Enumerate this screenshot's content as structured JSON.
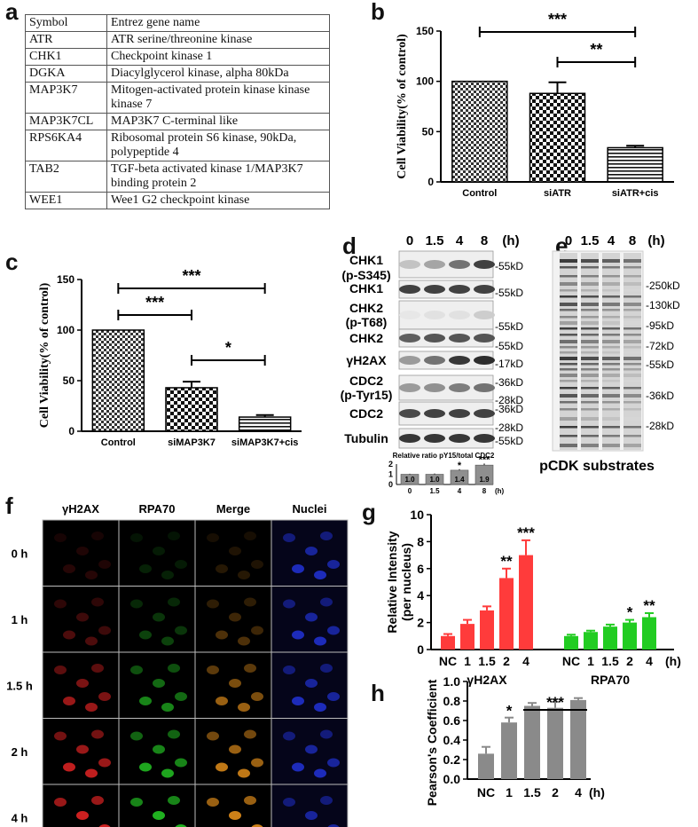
{
  "panel_labels": {
    "a": "a",
    "b": "b",
    "c": "c",
    "d": "d",
    "e": "e",
    "f": "f",
    "g": "g",
    "h": "h"
  },
  "gene_table": {
    "headers": [
      "Symbol",
      "Entrez gene name"
    ],
    "rows": [
      {
        "symbol": "ATR",
        "name": "ATR serine/threonine kinase"
      },
      {
        "symbol": "CHK1",
        "name": "Checkpoint kinase 1"
      },
      {
        "symbol": "DGKA",
        "name": "Diacylglycerol kinase, alpha 80kDa"
      },
      {
        "symbol": "MAP3K7",
        "name": "Mitogen-activated protein kinase kinase kinase 7"
      },
      {
        "symbol": "MAP3K7CL",
        "name": "MAP3K7 C-terminal like"
      },
      {
        "symbol": "RPS6KA4",
        "name": "Ribosomal protein S6 kinase, 90kDa, polypeptide 4"
      },
      {
        "symbol": "TAB2",
        "name": "TGF-beta activated kinase 1/MAP3K7 binding protein 2"
      },
      {
        "symbol": "WEE1",
        "name": "Wee1 G2 checkpoint kinase"
      }
    ]
  },
  "chart_data": [
    {
      "id": "b",
      "type": "bar",
      "categories": [
        "Control",
        "siATR",
        "siATR+cis"
      ],
      "values": [
        100,
        88,
        34
      ],
      "errors": [
        0,
        11,
        2
      ],
      "ylabel": "Cell Viability(% of control)",
      "ylim": [
        0,
        150
      ],
      "yticks": [
        "0",
        "50",
        "100",
        "150"
      ],
      "significance": [
        {
          "from": 0,
          "to": 2,
          "label": "***"
        },
        {
          "from": 1,
          "to": 2,
          "label": "**"
        }
      ],
      "grid": false
    },
    {
      "id": "c",
      "type": "bar",
      "categories": [
        "Control",
        "siMAP3K7",
        "siMAP3K7+cis"
      ],
      "values": [
        100,
        43,
        14
      ],
      "errors": [
        0,
        6,
        2
      ],
      "ylabel": "Cell Viability(% of control)",
      "ylim": [
        0,
        150
      ],
      "yticks": [
        "0",
        "50",
        "100",
        "150"
      ],
      "significance": [
        {
          "from": 0,
          "to": 2,
          "label": "***"
        },
        {
          "from": 0,
          "to": 1,
          "label": "***"
        },
        {
          "from": 1,
          "to": 2,
          "label": "*"
        }
      ],
      "grid": false
    },
    {
      "id": "d-inset",
      "type": "bar",
      "title": "Relative ratio pY15/total CDC2",
      "categories": [
        "0",
        "1.5",
        "4",
        "8"
      ],
      "values": [
        1.0,
        1.0,
        1.4,
        1.9
      ],
      "value_labels": [
        "1.0",
        "1.0",
        "1.4",
        "1.9"
      ],
      "errors": [
        0.05,
        0.08,
        0.1,
        0.15
      ],
      "stars": [
        "",
        "",
        "*",
        "***"
      ],
      "xunit": "(h)",
      "ylim": [
        0,
        2
      ],
      "yticks": [
        "0",
        "1",
        "2"
      ]
    },
    {
      "id": "g",
      "type": "bar",
      "groups": [
        {
          "name": "γH2AX",
          "color": "#ff3b3b",
          "categories": [
            "NC",
            "1",
            "1.5",
            "2",
            "4"
          ],
          "values": [
            1.0,
            1.9,
            2.9,
            5.3,
            7.0
          ],
          "errors": [
            0.15,
            0.3,
            0.3,
            0.7,
            1.1
          ],
          "stars": [
            "",
            "",
            "",
            "**",
            "***"
          ]
        },
        {
          "name": "RPA70",
          "color": "#22cc22",
          "categories": [
            "NC",
            "1",
            "1.5",
            "2",
            "4"
          ],
          "values": [
            1.0,
            1.3,
            1.7,
            2.0,
            2.4
          ],
          "errors": [
            0.1,
            0.1,
            0.15,
            0.2,
            0.3
          ],
          "stars": [
            "",
            "",
            "",
            "*",
            "**"
          ]
        }
      ],
      "xunit": "(h)",
      "ylabel": "Relative Intensity (per nucleus)",
      "ylabel_lines": [
        "Relative Intensity",
        "(per nucleus)"
      ],
      "ylim": [
        0,
        10
      ],
      "yticks": [
        "0",
        "2",
        "4",
        "6",
        "8",
        "10"
      ]
    },
    {
      "id": "h",
      "type": "bar",
      "categories": [
        "NC",
        "1",
        "1.5",
        "2",
        "4"
      ],
      "values": [
        0.26,
        0.58,
        0.75,
        0.73,
        0.81
      ],
      "errors": [
        0.07,
        0.05,
        0.03,
        0.06,
        0.02
      ],
      "stars": [
        "",
        "*",
        "",
        "",
        ""
      ],
      "significance": [
        {
          "from": 2,
          "to": 4,
          "label": "***"
        }
      ],
      "xunit": "(h)",
      "ylabel": "Pearson's Coefficient",
      "ylim": [
        0,
        1.0
      ],
      "yticks": [
        "0.0",
        "0.2",
        "0.4",
        "0.6",
        "0.8",
        "1.0"
      ],
      "color": "#8a8a8a"
    }
  ],
  "western_d": {
    "times": [
      "0",
      "1.5",
      "4",
      "8"
    ],
    "unit": "(h)",
    "rows": [
      {
        "label": [
          "CHK1",
          "(p-S345)"
        ],
        "markers": [
          "55kD"
        ]
      },
      {
        "label": [
          "CHK1"
        ],
        "markers": [
          "55kD"
        ]
      },
      {
        "label": [
          "CHK2",
          "(p-T68)"
        ],
        "markers": [
          "55kD"
        ]
      },
      {
        "label": [
          "CHK2"
        ],
        "markers": [
          "55kD"
        ]
      },
      {
        "label": [
          "γH2AX"
        ],
        "markers": [
          "17kD"
        ]
      },
      {
        "label": [
          "CDC2",
          "(p-Tyr15)"
        ],
        "markers": [
          "36kD",
          "28kD"
        ]
      },
      {
        "label": [
          "CDC2"
        ],
        "markers": [
          "36kD",
          "28kD"
        ]
      },
      {
        "label": [
          "Tubulin"
        ],
        "markers": [
          "55kD"
        ]
      }
    ]
  },
  "western_e": {
    "times": [
      "0",
      "1.5",
      "4",
      "8"
    ],
    "unit": "(h)",
    "markers": [
      "250kD",
      "130kD",
      "95kD",
      "72kD",
      "55kD",
      "36kD",
      "28kD"
    ],
    "caption": "pCDK substrates"
  },
  "microscopy_f": {
    "columns": [
      "γH2AX",
      "RPA70",
      "Merge",
      "Nuclei"
    ],
    "rows": [
      "0 h",
      "1 h",
      "1.5 h",
      "2 h",
      "4 h"
    ]
  }
}
